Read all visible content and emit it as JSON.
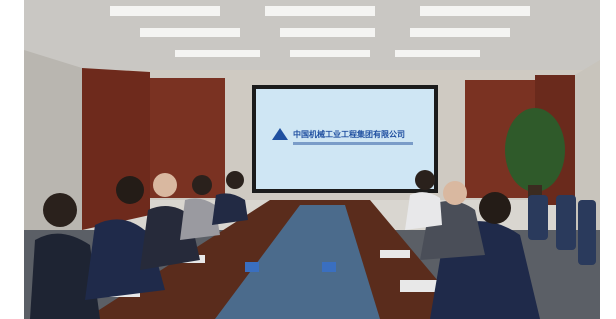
{
  "screen": {
    "company_name": "中国机械工业工程集团有限公司"
  }
}
